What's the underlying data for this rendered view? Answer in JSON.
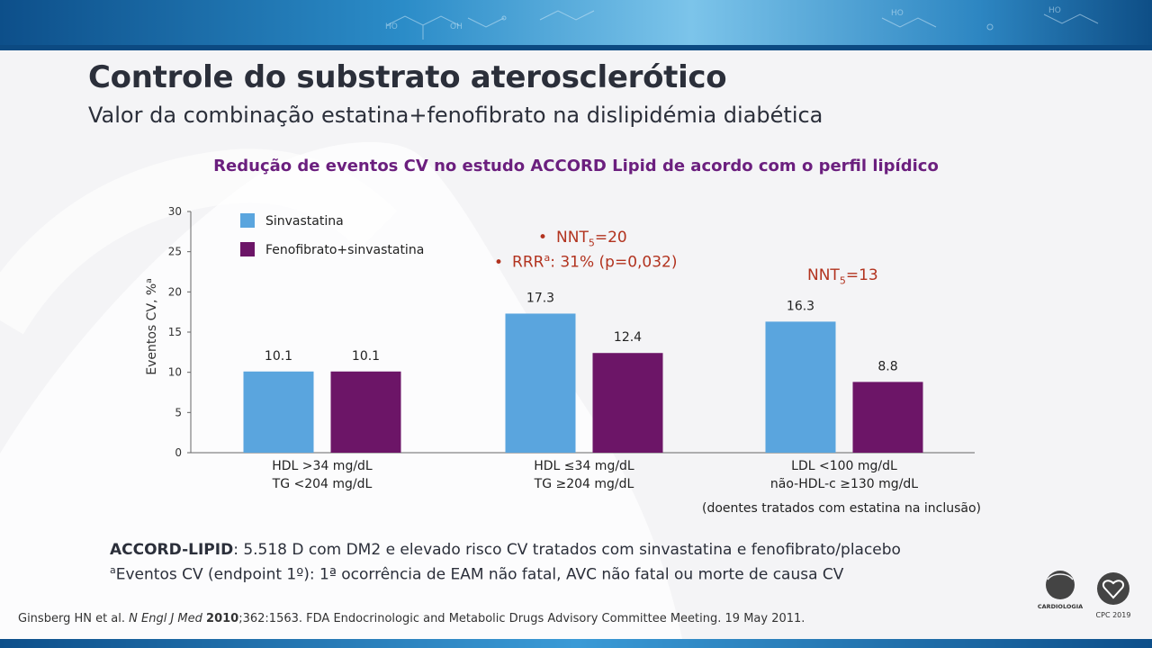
{
  "slide": {
    "title": "Controle do substrato aterosclerótico",
    "subtitle": "Valor da combinação estatina+fenofibrato na dislipidémia diabética",
    "chart_title": "Redução de eventos CV no estudo ACCORD Lipid de acordo com o perfil lipídico"
  },
  "annotations": {
    "nnt_a_prefix": "NNT",
    "nnt_a_sub": "5",
    "nnt_a_value": "=20",
    "rrr_prefix": "RRR",
    "rrr_sup": "a",
    "rrr_value": ": 31% (p=0,032)",
    "nnt_b_prefix": "NNT",
    "nnt_b_sub": "5",
    "nnt_b_value": "=13",
    "bullet": "•"
  },
  "chart_data": {
    "type": "bar",
    "ylabel": "Eventos CV, %",
    "ylabel_sup": "a",
    "ylim": [
      0,
      30
    ],
    "yticks": [
      0,
      5,
      10,
      15,
      20,
      25,
      30
    ],
    "grid": false,
    "legend_position": "top-left",
    "categories": [
      [
        "HDL >34 mg/dL",
        "TG <204 mg/dL"
      ],
      [
        "HDL ≤34 mg/dL",
        "TG ≥204 mg/dL"
      ],
      [
        "LDL <100 mg/dL",
        "não-HDL-c ≥130 mg/dL"
      ]
    ],
    "series": [
      {
        "name": "Sinvastatina",
        "color": "#5aa5de",
        "values": [
          10.1,
          17.3,
          16.3
        ]
      },
      {
        "name": "Fenofibrato+sinvastatina",
        "color": "#6c1567",
        "values": [
          10.1,
          12.4,
          8.8
        ]
      }
    ],
    "footnote": "(doentes tratados com estatina na inclusão)"
  },
  "notes": {
    "line1_bold": "ACCORD-LIPID",
    "line1_rest": ": 5.518 D com DM2 e elevado risco CV tratados com sinvastatina e fenofibrato/placebo",
    "line2_sup": "a",
    "line2_rest": "Eventos CV (endpoint 1º): 1ª ocorrência de EAM não fatal, AVC não fatal ou morte de causa CV"
  },
  "reference": {
    "authors": "Ginsberg HN et al. ",
    "journal": "N Engl J Med",
    "space": " ",
    "year": "2010",
    "rest": ";362:1563. FDA Endocrinologic and Metabolic Drugs Advisory Committee Meeting. 19 May 2011."
  },
  "logos": {
    "spc_line1": "CARDIOLOGIA",
    "cpc": "CPC 2019"
  }
}
